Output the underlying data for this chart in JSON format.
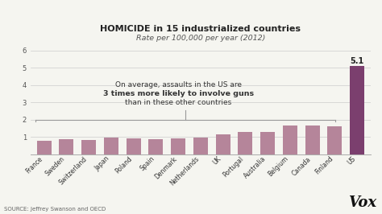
{
  "title_line1": "HOMICIDE in 15 industrialized countries",
  "title_line2": "Rate per 100,000 per year (2012)",
  "categories": [
    "France",
    "Sweden",
    "Switzerland",
    "Japan",
    "Poland",
    "Spain",
    "Denmark",
    "Netherlands",
    "UK",
    "Portugal",
    "Australia",
    "Belgium",
    "Canada",
    "Finland",
    "US"
  ],
  "values": [
    0.75,
    0.85,
    0.83,
    0.97,
    0.93,
    0.87,
    0.93,
    0.97,
    1.15,
    1.27,
    1.3,
    1.65,
    1.65,
    1.63,
    5.1
  ],
  "bar_color_normal": "#b5859a",
  "bar_color_us": "#7b3f6e",
  "ylim": [
    0,
    6.2
  ],
  "yticks": [
    1,
    2,
    3,
    4,
    5,
    6
  ],
  "annotation_line1": "On average, assaults in the US are",
  "annotation_line2": "3 times more likely to involve guns",
  "annotation_line3": "than in these other countries",
  "us_label": "5.1",
  "source_text": "SOURCE: Jeffrey Swanson and OECD",
  "vox_text": "Vox",
  "background_color": "#f5f5f0",
  "bracket_color": "#999999",
  "grid_color": "#cccccc"
}
